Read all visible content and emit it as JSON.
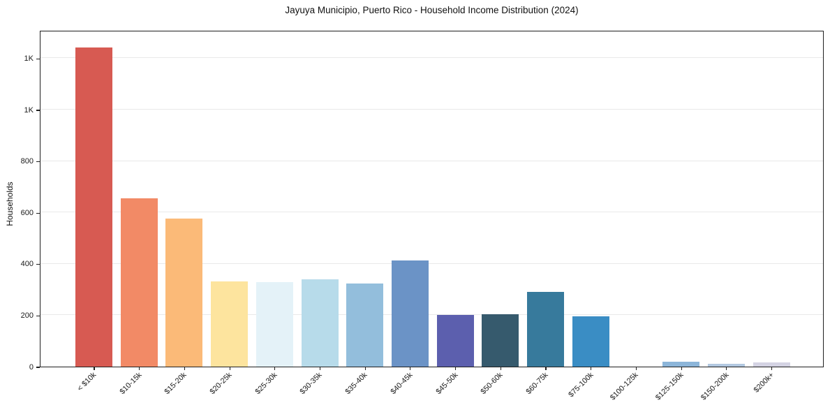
{
  "chart_data": {
    "type": "bar",
    "title": "Jayuya Municipio, Puerto Rico - Household Income Distribution (2024)",
    "xlabel": "",
    "ylabel": "Households",
    "categories": [
      "< $10k",
      "$10-15k",
      "$15-20k",
      "$20-25k",
      "$25-30k",
      "$30-35k",
      "$35-40k",
      "$40-45k",
      "$45-50k",
      "$50-60k",
      "$60-75k",
      "$75-100k",
      "$100-125k",
      "$125-150k",
      "$150-200k",
      "$200k+"
    ],
    "values": [
      1243,
      656,
      576,
      331,
      328,
      339,
      324,
      414,
      201,
      204,
      291,
      195,
      0,
      18,
      12,
      15
    ],
    "bar_colors": [
      "#d75a52",
      "#f28a66",
      "#fbba78",
      "#fde49e",
      "#e4f2f8",
      "#b7dbea",
      "#93bedc",
      "#6b93c6",
      "#5c5fae",
      "#365a6d",
      "#377a9c",
      "#3a8dc4",
      "#74a9d0",
      "#8cb5d9",
      "#b2c8e0",
      "#d4d3e3"
    ],
    "ylim": [
      0,
      1310
    ],
    "yticks": {
      "values": [
        0,
        200,
        400,
        600,
        800,
        1000,
        1200
      ],
      "labels": [
        "0",
        "200",
        "400",
        "600",
        "800",
        "1K",
        "1K"
      ]
    },
    "grid": "horizontal-major",
    "legend": "none",
    "colors": {
      "axis": "#1f1f1f",
      "grid": "#e9e9e9",
      "background": "#ffffff",
      "text": "#1a1a1a"
    }
  }
}
